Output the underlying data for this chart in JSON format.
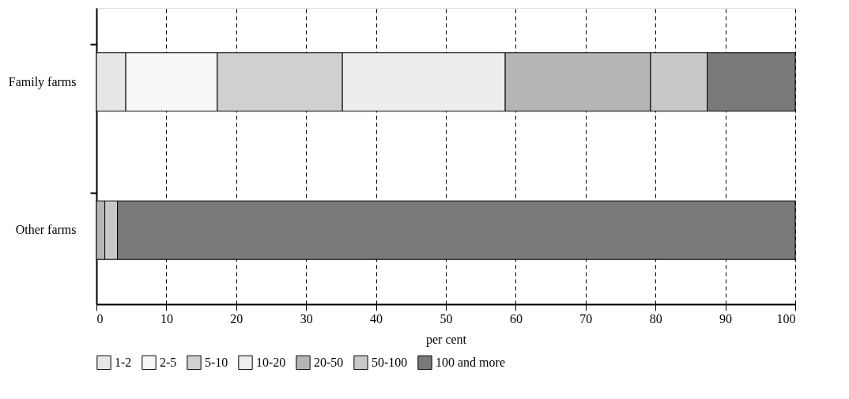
{
  "chart_data": {
    "type": "bar",
    "orientation": "horizontal",
    "stacked": true,
    "categories": [
      "Family farms",
      "Other farms"
    ],
    "xlabel": "per cent",
    "xlim": [
      0,
      100
    ],
    "xticks": [
      0,
      10,
      20,
      30,
      40,
      50,
      60,
      70,
      80,
      90,
      100
    ],
    "grid": "x",
    "legend": "bottom",
    "series": [
      {
        "name": "1-2",
        "color": "#e6e6e6",
        "values": [
          4.2,
          null
        ]
      },
      {
        "name": "2-5",
        "color": "#f7f7f7",
        "values": [
          13.1,
          null
        ]
      },
      {
        "name": "5-10",
        "color": "#d0d0d0",
        "values": [
          17.9,
          null
        ]
      },
      {
        "name": "10-20",
        "color": "#ededed",
        "values": [
          23.3,
          null
        ]
      },
      {
        "name": "20-50",
        "color": "#b5b5b5",
        "values": [
          20.8,
          1.2
        ]
      },
      {
        "name": "50-100",
        "color": "#c8c8c8",
        "values": [
          8.1,
          1.8
        ]
      },
      {
        "name": "100 and more",
        "color": "#7a7a7a",
        "values": [
          12.6,
          97.0
        ]
      }
    ]
  }
}
